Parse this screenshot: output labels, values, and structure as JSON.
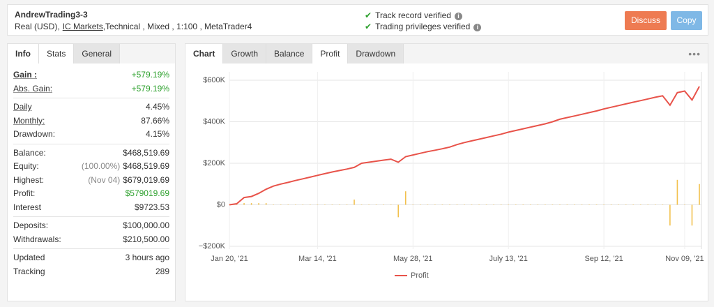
{
  "header": {
    "title": "AndrewTrading3-3",
    "subtitle": [
      "Real (USD),",
      "IC Markets",
      ",Technical , Mixed , 1:100 , MetaTrader4"
    ],
    "verified": [
      "Track record verified",
      "Trading privileges verified"
    ],
    "buttons": [
      "Discuss",
      "Copy"
    ]
  },
  "left_tabs": [
    "Info",
    "Stats",
    "General"
  ],
  "stats": {
    "groups": [
      {
        "rows": [
          {
            "label": "Gain :",
            "value": "+579.19%",
            "underline": true,
            "bold": true,
            "color": "#2ca02c"
          },
          {
            "label": "Abs. Gain:",
            "value": "+579.19%",
            "underline": true,
            "color": "#2ca02c"
          }
        ]
      },
      {
        "rows": [
          {
            "label": "Daily",
            "value": "4.45%",
            "underline": true
          },
          {
            "label": "Monthly:",
            "value": "87.66%",
            "underline": true
          },
          {
            "label": "Drawdown:",
            "value": "4.15%"
          }
        ]
      },
      {
        "rows": [
          {
            "label": "Balance:",
            "value": "$468,519.69"
          },
          {
            "label": "Equity:",
            "note": "(100.00%)",
            "value": "$468,519.69"
          },
          {
            "label": "Highest:",
            "note": "(Nov 04)",
            "value": "$679,019.69"
          },
          {
            "label": "Profit:",
            "value": "$579019.69",
            "color": "#2ca02c"
          },
          {
            "label": "Interest",
            "value": "$9723.53"
          }
        ]
      },
      {
        "rows": [
          {
            "label": "Deposits:",
            "value": "$100,000.00"
          },
          {
            "label": "Withdrawals:",
            "value": "$210,500.00"
          }
        ]
      },
      {
        "rows": [
          {
            "label": "Updated",
            "value": "3 hours ago"
          },
          {
            "label": "Tracking",
            "value": "289"
          }
        ]
      }
    ]
  },
  "chart_tabs": [
    "Chart",
    "Growth",
    "Balance",
    "Profit",
    "Drawdown"
  ],
  "chart_data": {
    "type": "line",
    "categories": [
      "Jan 20, '21",
      null,
      null,
      null,
      null,
      null,
      null,
      null,
      null,
      null,
      null,
      null,
      "Mar 14, '21",
      null,
      null,
      null,
      null,
      null,
      null,
      null,
      null,
      null,
      null,
      null,
      null,
      "May 28, '21",
      null,
      null,
      null,
      null,
      null,
      null,
      null,
      null,
      null,
      null,
      null,
      null,
      "July 13, '21",
      null,
      null,
      null,
      null,
      null,
      null,
      null,
      null,
      null,
      null,
      null,
      null,
      "Sep 12, '21",
      null,
      null,
      null,
      null,
      null,
      null,
      null,
      null,
      null,
      null,
      "Nov 09, '21",
      null,
      null
    ],
    "series": [
      {
        "name": "Profit",
        "color": "#e8534a",
        "type": "line",
        "values": [
          0,
          5000,
          35000,
          40000,
          55000,
          75000,
          90000,
          100000,
          108000,
          117000,
          125000,
          133000,
          142000,
          150000,
          158000,
          165000,
          172000,
          180000,
          200000,
          205000,
          210000,
          215000,
          220000,
          205000,
          232000,
          240000,
          248000,
          256000,
          263000,
          270000,
          278000,
          290000,
          300000,
          308000,
          316000,
          324000,
          332000,
          340000,
          350000,
          358000,
          366000,
          374000,
          382000,
          390000,
          400000,
          412000,
          420000,
          428000,
          436000,
          444000,
          452000,
          462000,
          470000,
          478000,
          486000,
          494000,
          502000,
          510000,
          518000,
          525000,
          480000,
          540000,
          548000,
          505000,
          570000
        ]
      },
      {
        "color": "#f2c14e",
        "type": "bar",
        "values": [
          1000,
          1000,
          8000,
          8000,
          8000,
          8000,
          1000,
          1000,
          1000,
          1000,
          1000,
          1000,
          1000,
          1000,
          1000,
          1000,
          1000,
          25000,
          1000,
          1000,
          1000,
          1000,
          1000,
          -60000,
          65000,
          1000,
          1000,
          1000,
          1000,
          1000,
          1000,
          1000,
          1000,
          1000,
          1000,
          1000,
          1000,
          1000,
          1000,
          1000,
          1000,
          1000,
          1000,
          1000,
          1000,
          1000,
          1000,
          1000,
          1000,
          1000,
          1000,
          1000,
          1000,
          1000,
          1000,
          1000,
          1000,
          1000,
          1000,
          1000,
          -100000,
          120000,
          1000,
          -100000,
          100000
        ]
      }
    ],
    "ylim": [
      -200000,
      600000
    ],
    "yticks": [
      {
        "value": -200000,
        "label": "−$200K"
      },
      {
        "value": 0,
        "label": "$0"
      },
      {
        "value": 200000,
        "label": "$200K"
      },
      {
        "value": 400000,
        "label": "$400K"
      },
      {
        "value": 600000,
        "label": "$600K"
      }
    ],
    "grid": true
  }
}
